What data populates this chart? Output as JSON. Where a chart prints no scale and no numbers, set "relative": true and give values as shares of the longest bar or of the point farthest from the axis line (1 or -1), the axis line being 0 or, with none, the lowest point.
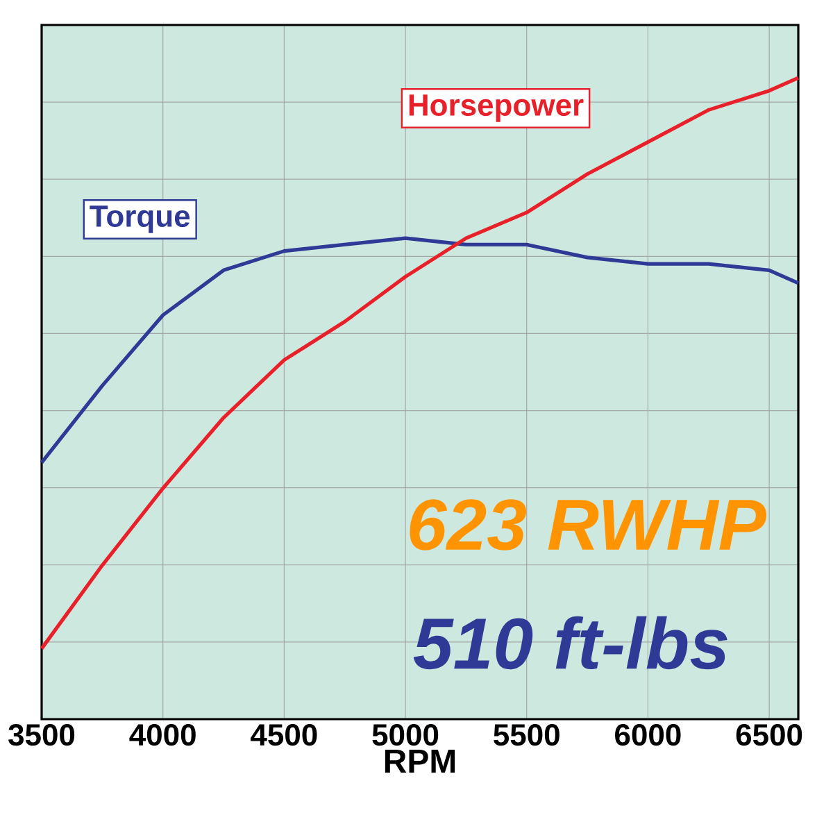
{
  "chart_data": {
    "type": "line",
    "relative": true,
    "xlabel": "RPM",
    "grid": true,
    "marker": "none",
    "line_style": "solid",
    "xlim": [
      3500,
      6620
    ],
    "xticks": [
      3500,
      4000,
      4500,
      5000,
      5500,
      6000,
      6500
    ],
    "series": [
      {
        "name": "Torque",
        "color": "#2e3a96",
        "x": [
          3500,
          3750,
          4000,
          4250,
          4500,
          4750,
          5000,
          5250,
          5500,
          5750,
          6000,
          6250,
          6500,
          6620
        ],
        "values": [
          0.4,
          0.52,
          0.63,
          0.7,
          0.73,
          0.74,
          0.75,
          0.74,
          0.74,
          0.72,
          0.71,
          0.71,
          0.7,
          0.68
        ]
      },
      {
        "name": "Horsepower",
        "color": "#e8202a",
        "x": [
          3500,
          3750,
          4000,
          4250,
          4500,
          4750,
          5000,
          5250,
          5500,
          5750,
          6000,
          6250,
          6500,
          6620
        ],
        "values": [
          0.11,
          0.24,
          0.36,
          0.47,
          0.56,
          0.62,
          0.69,
          0.75,
          0.79,
          0.85,
          0.9,
          0.95,
          0.98,
          1.0
        ]
      }
    ],
    "annotations": [
      "623 RWHP",
      "510 ft-lbs"
    ]
  }
}
